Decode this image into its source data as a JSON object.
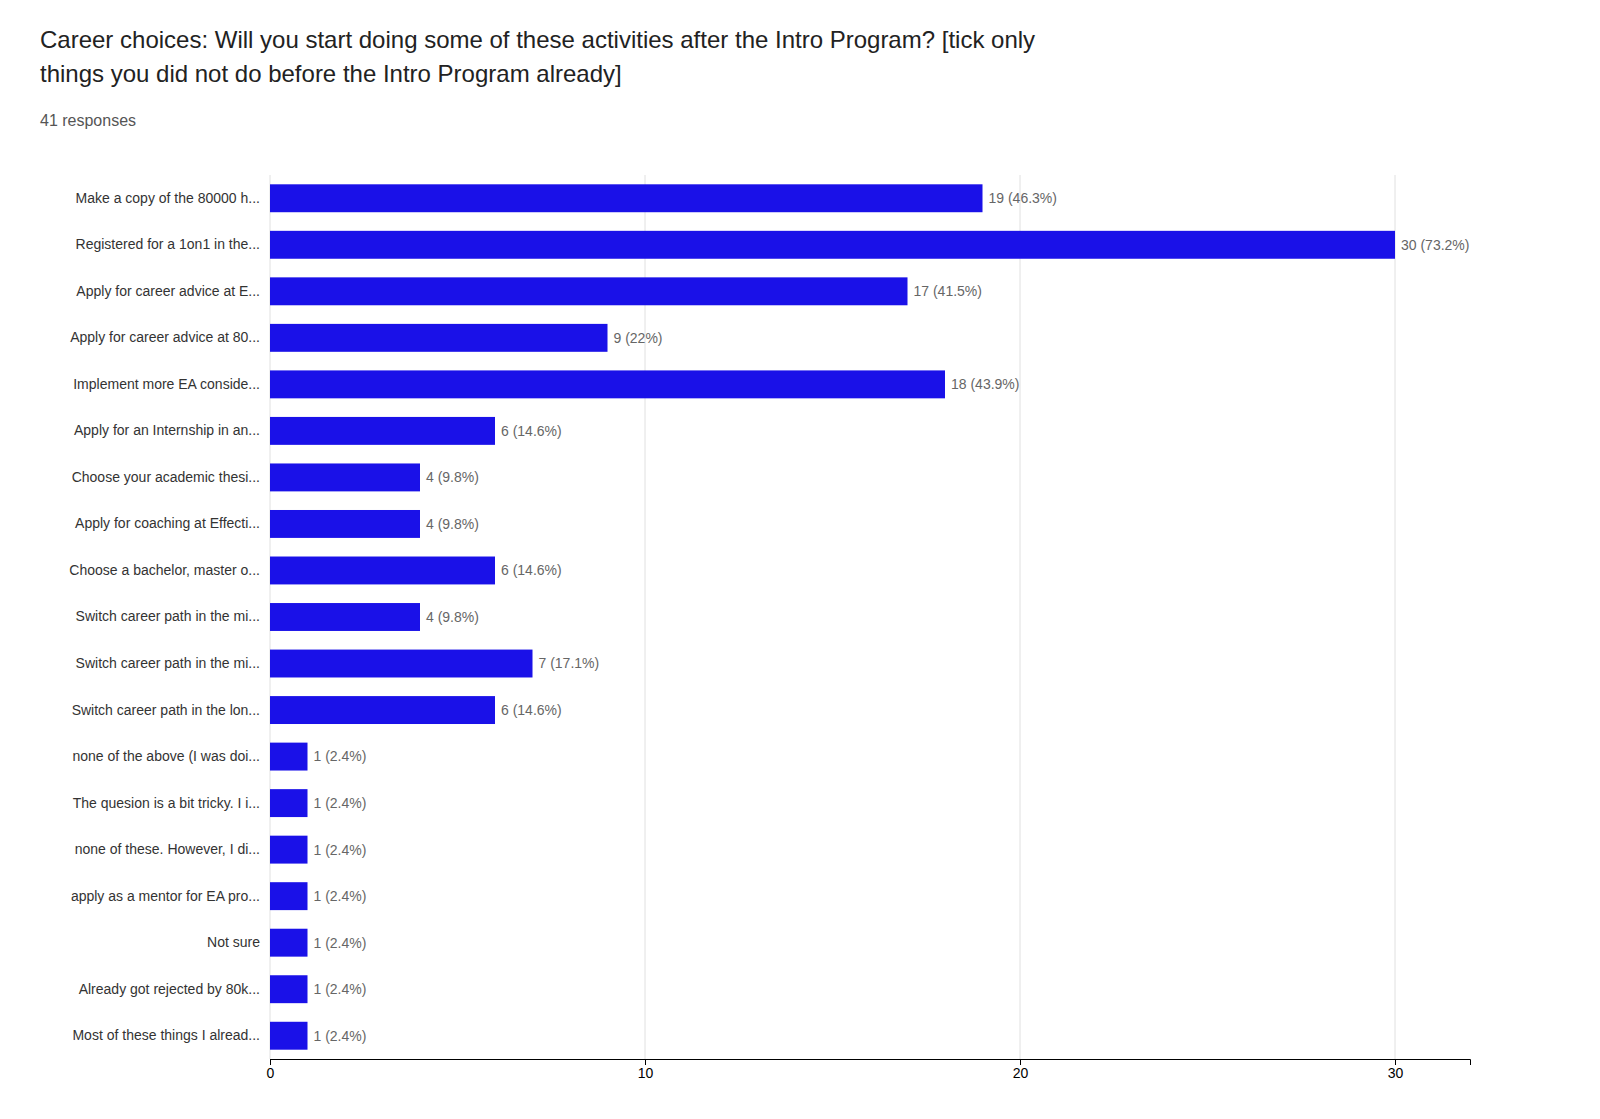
{
  "chart_data": {
    "type": "bar",
    "orientation": "horizontal",
    "title": [
      "Career choices:  Will you start doing some of these activities after the Intro Program? [tick only",
      "things you did not do before the Intro Program already]"
    ],
    "subtitle": "41 responses",
    "categories": [
      "Make a copy of the 80000 h...",
      "Registered for a 1on1 in the...",
      "Apply for career advice at E...",
      "Apply for career advice at 80...",
      "Implement more EA conside...",
      "Apply for an Internship in an...",
      "Choose your academic thesi...",
      "Apply for coaching at Effecti...",
      "Choose a bachelor, master o...",
      "Switch career path in the mi...",
      "Switch career path in the mi...",
      "Switch career path in the lon...",
      "none of the above (I was doi...",
      "The quesion is a bit tricky. I i...",
      "none of these. However, I di...",
      "apply as a mentor for EA pro...",
      "Not sure",
      "Already got rejected by 80k...",
      "Most of these things I alread..."
    ],
    "values": [
      19,
      30,
      17,
      9,
      18,
      6,
      4,
      4,
      6,
      4,
      7,
      6,
      1,
      1,
      1,
      1,
      1,
      1,
      1
    ],
    "value_labels": [
      "19 (46.3%)",
      "30 (73.2%)",
      "17 (41.5%)",
      "9 (22%)",
      "18 (43.9%)",
      "6 (14.6%)",
      "4 (9.8%)",
      "4 (9.8%)",
      "6 (14.6%)",
      "4 (9.8%)",
      "7 (17.1%)",
      "6 (14.6%)",
      "1 (2.4%)",
      "1 (2.4%)",
      "1 (2.4%)",
      "1 (2.4%)",
      "1 (2.4%)",
      "1 (2.4%)",
      "1 (2.4%)"
    ],
    "data_labels": true,
    "color": "#1a11e8",
    "xlim": [
      0,
      32
    ],
    "xticks": [
      0,
      10,
      20,
      30
    ],
    "grid": true
  }
}
